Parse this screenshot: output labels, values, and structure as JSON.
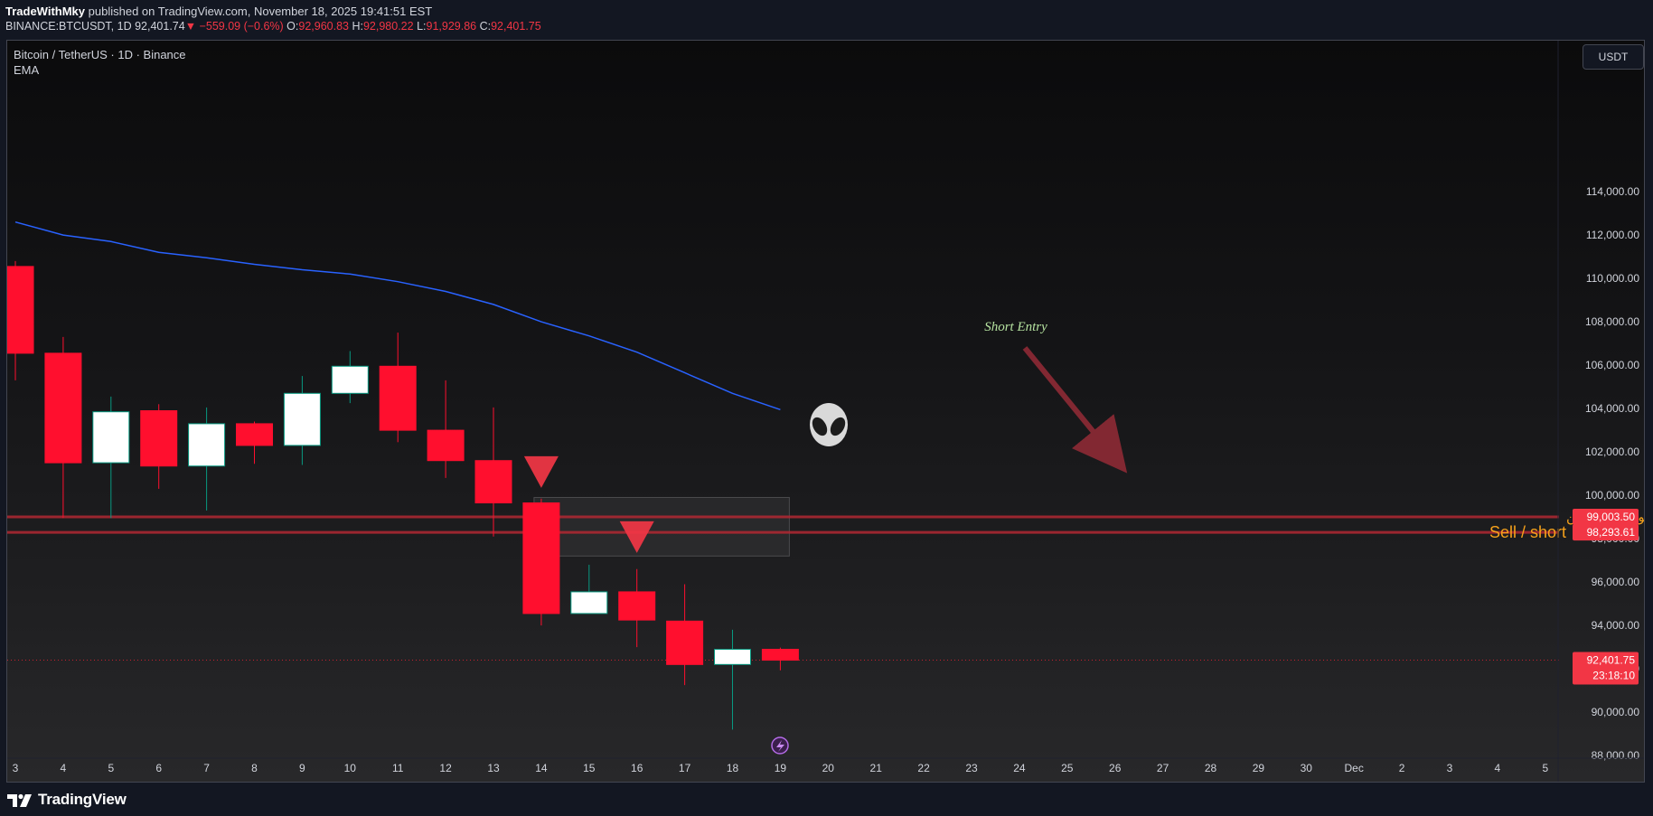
{
  "header": {
    "author": "TradeWithMky",
    "published": "published on TradingView.com, November 18, 2025 19:41:51 EST",
    "symbol": "BINANCE:BTCUSDT, 1D",
    "last": "92,401.74",
    "change": "−559.09 (−0.6%)",
    "o_label": "O:",
    "o_value": "92,960.83",
    "h_label": "H:",
    "h_value": "92,980.22",
    "l_label": "L:",
    "l_value": "91,929.86",
    "c_label": "C:",
    "c_value": "92,401.75"
  },
  "legend": {
    "symbol": "Bitcoin / TetherUS · 1D · Binance",
    "indicator": "EMA"
  },
  "currency_button": "USDT",
  "footer": {
    "brand": "TradingView"
  },
  "colors": {
    "up": "#ffffff",
    "up_border": "#089981",
    "down": "#ff0f2e",
    "ema": "#2962ff",
    "level": "#b22833",
    "annotation": "#f7a21b",
    "short_entry": "#b6e3a0"
  },
  "annotations": {
    "short_entry": "Short Entry",
    "persian_note": "قیمت برسه اینجا دو سوته میره پایین",
    "sell_short": "Sell  /  short",
    "level_upper": "99,003.50",
    "level_lower": "98,293.61",
    "price_tag": "92,401.75",
    "countdown": "23:18:10",
    "alien_icon": "alien emoji",
    "lightning_icon": "lightning"
  },
  "chart_data": {
    "type": "candlestick",
    "title": "Bitcoin / TetherUS · 1D · Binance",
    "x_tick_labels": [
      "3",
      "4",
      "5",
      "6",
      "7",
      "8",
      "9",
      "10",
      "11",
      "12",
      "13",
      "14",
      "15",
      "16",
      "17",
      "18",
      "19",
      "20",
      "21",
      "22",
      "23",
      "24",
      "25",
      "26",
      "27",
      "28",
      "29",
      "30",
      "Dec",
      "2",
      "3",
      "4",
      "5"
    ],
    "y_tick_labels": [
      "114,000.00",
      "112,000.00",
      "110,000.00",
      "108,000.00",
      "106,000.00",
      "104,000.00",
      "102,000.00",
      "100,000.00",
      "98,000.00",
      "96,000.00",
      "94,000.00",
      "92,000.00",
      "90,000.00",
      "88,000.00"
    ],
    "ylim": [
      87000,
      115000
    ],
    "candles": [
      {
        "date": "Nov 3",
        "open": 110550,
        "high": 110800,
        "low": 105300,
        "close": 106550
      },
      {
        "date": "Nov 4",
        "open": 106550,
        "high": 107300,
        "low": 98950,
        "close": 101500
      },
      {
        "date": "Nov 5",
        "open": 101500,
        "high": 104550,
        "low": 98950,
        "close": 103850
      },
      {
        "date": "Nov 6",
        "open": 103900,
        "high": 104200,
        "low": 100300,
        "close": 101350
      },
      {
        "date": "Nov 7",
        "open": 101350,
        "high": 104050,
        "low": 99300,
        "close": 103300
      },
      {
        "date": "Nov 8",
        "open": 103300,
        "high": 103400,
        "low": 101450,
        "close": 102300
      },
      {
        "date": "Nov 9",
        "open": 102300,
        "high": 105500,
        "low": 101400,
        "close": 104700
      },
      {
        "date": "Nov 10",
        "open": 104700,
        "high": 106650,
        "low": 104250,
        "close": 105950
      },
      {
        "date": "Nov 11",
        "open": 105950,
        "high": 107500,
        "low": 102450,
        "close": 103000
      },
      {
        "date": "Nov 12",
        "open": 103000,
        "high": 105300,
        "low": 100800,
        "close": 101600
      },
      {
        "date": "Nov 13",
        "open": 101600,
        "high": 104050,
        "low": 98100,
        "close": 99650
      },
      {
        "date": "Nov 14",
        "open": 99650,
        "high": 99850,
        "low": 94000,
        "close": 94550
      },
      {
        "date": "Nov 15",
        "open": 94550,
        "high": 96800,
        "low": 94550,
        "close": 95550
      },
      {
        "date": "Nov 16",
        "open": 95550,
        "high": 96600,
        "low": 93000,
        "close": 94250
      },
      {
        "date": "Nov 17",
        "open": 94200,
        "high": 95900,
        "low": 91250,
        "close": 92200
      },
      {
        "date": "Nov 18",
        "open": 92200,
        "high": 93800,
        "low": 89200,
        "close": 92900
      },
      {
        "date": "Nov 19",
        "open": 92900,
        "high": 92980,
        "low": 91930,
        "close": 92400
      }
    ],
    "ema": [
      {
        "date": "Nov 3",
        "value": 112600
      },
      {
        "date": "Nov 4",
        "value": 112000
      },
      {
        "date": "Nov 5",
        "value": 111700
      },
      {
        "date": "Nov 6",
        "value": 111200
      },
      {
        "date": "Nov 7",
        "value": 110950
      },
      {
        "date": "Nov 8",
        "value": 110650
      },
      {
        "date": "Nov 9",
        "value": 110400
      },
      {
        "date": "Nov 10",
        "value": 110200
      },
      {
        "date": "Nov 11",
        "value": 109850
      },
      {
        "date": "Nov 12",
        "value": 109400
      },
      {
        "date": "Nov 13",
        "value": 108800
      },
      {
        "date": "Nov 14",
        "value": 108000
      },
      {
        "date": "Nov 15",
        "value": 107350
      },
      {
        "date": "Nov 16",
        "value": 106600
      },
      {
        "date": "Nov 17",
        "value": 105650
      },
      {
        "date": "Nov 18",
        "value": 104700
      },
      {
        "date": "Nov 19",
        "value": 103950
      }
    ],
    "levels": [
      99003.5,
      98293.61
    ],
    "last_price": 92401.75,
    "zone": {
      "from_date": "Nov 14",
      "to_date": "Nov 19",
      "high": 99900,
      "low": 97200
    },
    "grid": false
  }
}
